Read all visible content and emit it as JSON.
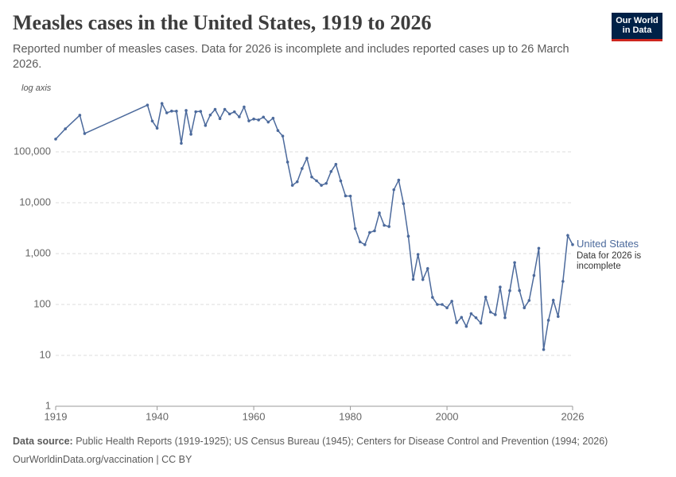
{
  "chart_data": {
    "type": "line",
    "title": "Measles cases in the United States, 1919 to 2026",
    "subtitle": "Reported number of measles cases. Data for 2026 is incomplete and includes reported cases up to 26 March 2026.",
    "y_axis_note": "log axis",
    "log_y": true,
    "grid": true,
    "annotation": "Data for 2026 is incomplete",
    "x": [
      1919,
      1921,
      1924,
      1925,
      1938,
      1939,
      1940,
      1941,
      1942,
      1943,
      1944,
      1945,
      1946,
      1947,
      1948,
      1949,
      1950,
      1951,
      1952,
      1953,
      1954,
      1955,
      1956,
      1957,
      1958,
      1959,
      1960,
      1961,
      1962,
      1963,
      1964,
      1965,
      1966,
      1967,
      1968,
      1969,
      1970,
      1971,
      1972,
      1973,
      1974,
      1975,
      1976,
      1977,
      1978,
      1979,
      1980,
      1981,
      1982,
      1983,
      1984,
      1985,
      1986,
      1987,
      1988,
      1989,
      1990,
      1991,
      1992,
      1993,
      1994,
      1995,
      1996,
      1997,
      1998,
      1999,
      2000,
      2001,
      2002,
      2003,
      2004,
      2005,
      2006,
      2007,
      2008,
      2009,
      2010,
      2011,
      2012,
      2013,
      2014,
      2015,
      2016,
      2017,
      2018,
      2019,
      2020,
      2021,
      2022,
      2023,
      2024,
      2025,
      2026
    ],
    "series": [
      {
        "name": "United States",
        "color": "#4c6a9c",
        "values": [
          178000,
          283000,
          525000,
          229000,
          830000,
          403000,
          291000,
          894000,
          584000,
          633000,
          630000,
          147000,
          650000,
          222000,
          615000,
          625000,
          330000,
          530000,
          683000,
          450000,
          683000,
          555000,
          611000,
          487000,
          763000,
          406000,
          442000,
          424000,
          482000,
          385000,
          458000,
          262000,
          204000,
          63000,
          22000,
          25800,
          47000,
          75000,
          32000,
          27000,
          22000,
          24000,
          41000,
          57000,
          26900,
          13600,
          13500,
          3100,
          1700,
          1500,
          2600,
          2800,
          6300,
          3600,
          3400,
          18000,
          27800,
          9600,
          2200,
          312,
          963,
          309,
          508,
          138,
          100,
          100,
          86,
          116,
          44,
          56,
          37,
          66,
          55,
          43,
          140,
          71,
          63,
          220,
          55,
          187,
          667,
          188,
          86,
          120,
          372,
          1274,
          13,
          49,
          121,
          58,
          285,
          2276,
          1500
        ]
      }
    ],
    "xlim": [
      1919,
      2026
    ],
    "xticks": [
      1919,
      1940,
      1960,
      1980,
      2000,
      2026
    ],
    "ylim": [
      1,
      1000000
    ],
    "yticks": [
      1,
      10,
      100,
      {
        "value": 1000,
        "label": "1,000"
      },
      {
        "value": 10000,
        "label": "10,000"
      },
      {
        "value": 100000,
        "label": "100,000"
      }
    ]
  },
  "footer": {
    "source_label": "Data source:",
    "source": "Public Health Reports (1919-1925); US Census Bureau (1945); Centers for Disease Control and Prevention (1994; 2026)",
    "url": "OurWorldinData.org/vaccination | CC BY"
  },
  "logo": {
    "line1": "Our World",
    "line2": "in Data"
  }
}
